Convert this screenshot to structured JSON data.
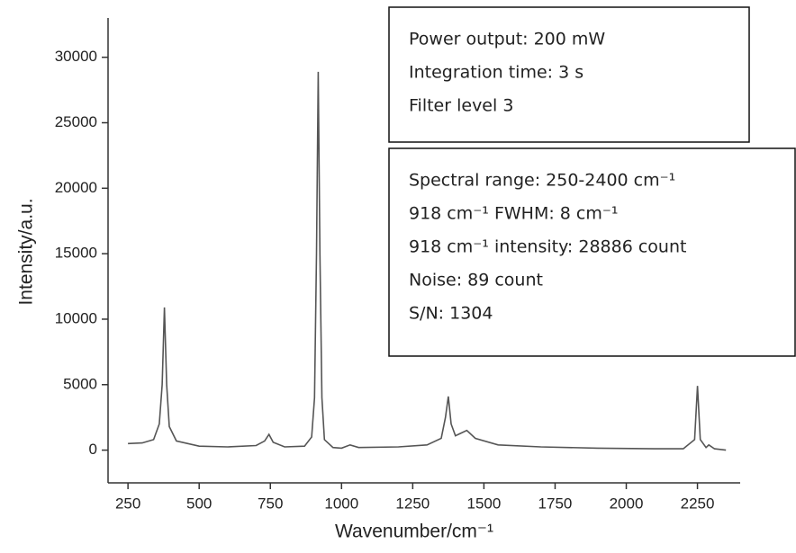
{
  "chart_data": {
    "type": "line",
    "x_label": "Wavenumber/cm⁻¹",
    "y_label": "Intensity/a.u.",
    "x": [
      250,
      300,
      340,
      360,
      370,
      378,
      386,
      395,
      420,
      500,
      600,
      700,
      730,
      745,
      760,
      800,
      870,
      895,
      905,
      912,
      918,
      924,
      931,
      940,
      970,
      1000,
      1030,
      1060,
      1200,
      1300,
      1350,
      1365,
      1375,
      1385,
      1400,
      1440,
      1470,
      1550,
      1700,
      1900,
      2100,
      2200,
      2240,
      2250,
      2260,
      2280,
      2290,
      2310,
      2350
    ],
    "values": [
      500,
      550,
      800,
      2000,
      5000,
      10900,
      5000,
      1800,
      700,
      300,
      250,
      350,
      700,
      1200,
      600,
      250,
      300,
      1000,
      4000,
      15000,
      28886,
      15000,
      4000,
      800,
      200,
      150,
      400,
      200,
      250,
      400,
      900,
      2500,
      4100,
      2000,
      1100,
      1500,
      900,
      400,
      250,
      150,
      100,
      100,
      800,
      4900,
      800,
      200,
      400,
      100,
      0
    ],
    "color": "#555555",
    "xlim": [
      180,
      2400
    ],
    "xticks": [
      250,
      500,
      750,
      1000,
      1250,
      1500,
      1750,
      2000,
      2250
    ],
    "ylim": [
      -2500,
      33000
    ],
    "yticks": [
      0,
      5000,
      10000,
      15000,
      20000,
      25000,
      30000
    ],
    "annotations": [
      [
        "Power output: 200 mW",
        "Integration time: 3 s",
        "Filter level 3"
      ],
      [
        "Spectral range: 250-2400 cm⁻¹",
        "918 cm⁻¹ FWHM: 8 cm⁻¹",
        "918 cm⁻¹ intensity: 28886 count",
        "Noise: 89 count",
        "S/N: 1304"
      ]
    ]
  }
}
